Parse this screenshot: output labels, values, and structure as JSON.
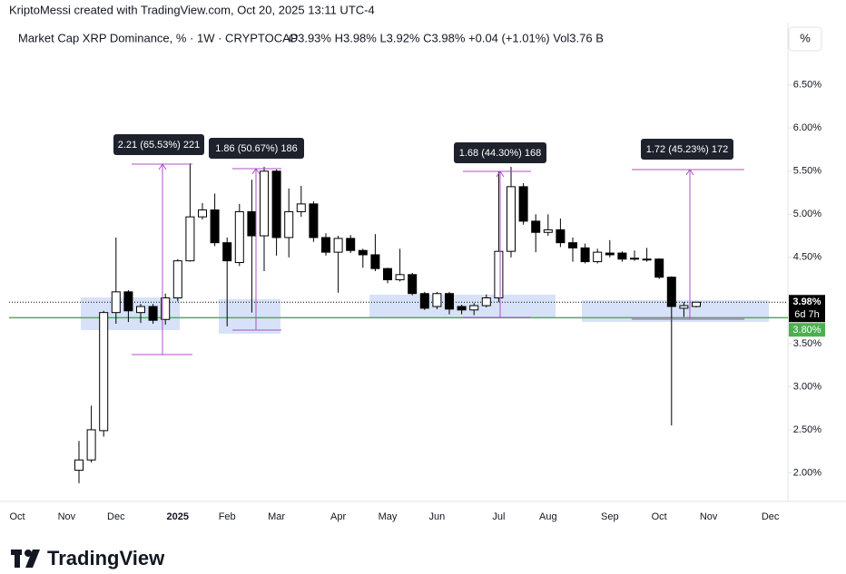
{
  "header": {
    "credit": "KriptoMessi created with TradingView.com, Oct 20, 2025 13:11 UTC-4",
    "logo": "TradingView"
  },
  "chart_data": {
    "type": "candlestick",
    "title": "Market Cap XRP Dominance, % · 1W · CRYPTOCAP",
    "ohlc_text": "O3.93% H3.98% L3.92% C3.98% +0.04 (+1.01%) Vol3.76 B",
    "scale_button": "%",
    "categories": [
      "Oct",
      null,
      null,
      null,
      "Nov",
      null,
      null,
      null,
      "Dec",
      null,
      null,
      null,
      null,
      "2025",
      null,
      null,
      null,
      "Feb",
      null,
      null,
      null,
      "Mar",
      null,
      null,
      null,
      null,
      "Apr",
      null,
      null,
      null,
      "May",
      null,
      null,
      null,
      "Jun",
      null,
      null,
      null,
      null,
      "Jul",
      null,
      null,
      null,
      "Aug",
      null,
      null,
      null,
      null,
      "Sep",
      null,
      null,
      null,
      "Oct",
      null,
      null,
      null,
      "Nov",
      null,
      null,
      null,
      null,
      "Dec"
    ],
    "open": [
      null,
      null,
      null,
      null,
      null,
      2.03,
      2.15,
      2.49,
      3.86,
      4.1,
      3.86,
      3.93,
      3.78,
      4.03,
      4.46,
      4.97,
      5.05,
      4.67,
      4.44,
      5.03,
      4.75,
      5.5,
      4.73,
      5.03,
      5.12,
      4.73,
      4.56,
      4.72,
      4.58,
      4.53,
      4.37,
      4.24,
      4.3,
      4.08,
      3.93,
      4.08,
      3.93,
      3.89,
      3.94,
      4.03,
      4.57,
      5.32,
      4.92,
      4.79,
      4.82,
      4.67,
      4.61,
      4.45,
      4.55,
      4.55,
      4.48,
      4.48,
      4.48,
      4.27,
      3.91,
      3.93,
      null,
      null,
      null,
      null,
      null,
      null
    ],
    "high": [
      null,
      null,
      null,
      null,
      null,
      2.37,
      2.78,
      3.88,
      4.73,
      4.12,
      3.96,
      3.96,
      4.08,
      4.48,
      5.59,
      5.13,
      5.24,
      4.73,
      5.12,
      5.4,
      5.55,
      5.52,
      5.3,
      5.33,
      5.15,
      4.78,
      4.75,
      4.76,
      4.6,
      4.77,
      4.38,
      4.6,
      4.32,
      4.1,
      4.1,
      4.1,
      3.95,
      3.97,
      4.07,
      5.5,
      5.55,
      5.36,
      5.0,
      5.0,
      4.95,
      4.73,
      4.66,
      4.6,
      4.7,
      4.57,
      4.58,
      4.61,
      4.49,
      4.28,
      3.98,
      3.98,
      null,
      null,
      null,
      null,
      null,
      null
    ],
    "low": [
      null,
      null,
      null,
      null,
      null,
      1.88,
      2.12,
      2.42,
      3.73,
      3.75,
      3.74,
      3.73,
      3.72,
      3.99,
      4.45,
      4.94,
      4.63,
      3.7,
      4.4,
      3.86,
      4.34,
      4.52,
      4.5,
      4.97,
      4.68,
      4.52,
      4.09,
      4.55,
      4.38,
      4.34,
      4.2,
      4.22,
      4.06,
      3.89,
      3.9,
      3.84,
      3.84,
      3.83,
      3.92,
      3.98,
      4.5,
      4.88,
      4.56,
      4.75,
      4.62,
      4.45,
      4.43,
      4.43,
      4.5,
      4.45,
      4.46,
      4.45,
      4.25,
      2.55,
      3.81,
      3.92,
      null,
      null,
      null,
      null,
      null,
      null
    ],
    "close": [
      null,
      null,
      null,
      null,
      null,
      2.15,
      2.5,
      3.86,
      4.1,
      3.88,
      3.93,
      3.77,
      4.03,
      4.46,
      4.97,
      5.05,
      4.67,
      4.46,
      5.03,
      4.75,
      5.5,
      4.73,
      5.03,
      5.12,
      4.73,
      4.56,
      4.72,
      4.58,
      4.53,
      4.37,
      4.24,
      4.3,
      4.08,
      3.91,
      4.08,
      3.9,
      3.89,
      3.94,
      4.03,
      4.57,
      5.32,
      4.92,
      4.79,
      4.82,
      4.67,
      4.61,
      4.45,
      4.56,
      4.53,
      4.48,
      4.49,
      4.47,
      4.27,
      3.93,
      3.94,
      3.98,
      null,
      null,
      null,
      null,
      null,
      null
    ],
    "up_color": "#ffffff",
    "down_color": "#000000",
    "ylim": [
      1.7,
      7.17
    ],
    "yticks": [
      {
        "value": 2.0,
        "label": "2.00%"
      },
      {
        "value": 2.5,
        "label": "2.50%"
      },
      {
        "value": 3.0,
        "label": "3.00%"
      },
      {
        "value": 3.5,
        "label": "3.50%"
      },
      {
        "value": 4.5,
        "label": "4.50%"
      },
      {
        "value": 5.0,
        "label": "5.00%"
      },
      {
        "value": 5.5,
        "label": "5.50%"
      },
      {
        "value": 6.0,
        "label": "6.00%"
      },
      {
        "value": 6.5,
        "label": "6.50%"
      }
    ],
    "grid": false,
    "price_lines": [
      {
        "value": 3.98,
        "label": "3.98%",
        "countdown": "6d 7h",
        "color": "#000000",
        "style": "dotted"
      },
      {
        "value": 3.8,
        "label": "3.80%",
        "color": "#4caf50",
        "style": "solid"
      }
    ],
    "annotations": [
      "2.21 (65.53%) 221",
      "1.86 (50.67%) 186",
      "1.68 (44.30%) 168",
      "1.72 (45.23%) 172"
    ]
  }
}
